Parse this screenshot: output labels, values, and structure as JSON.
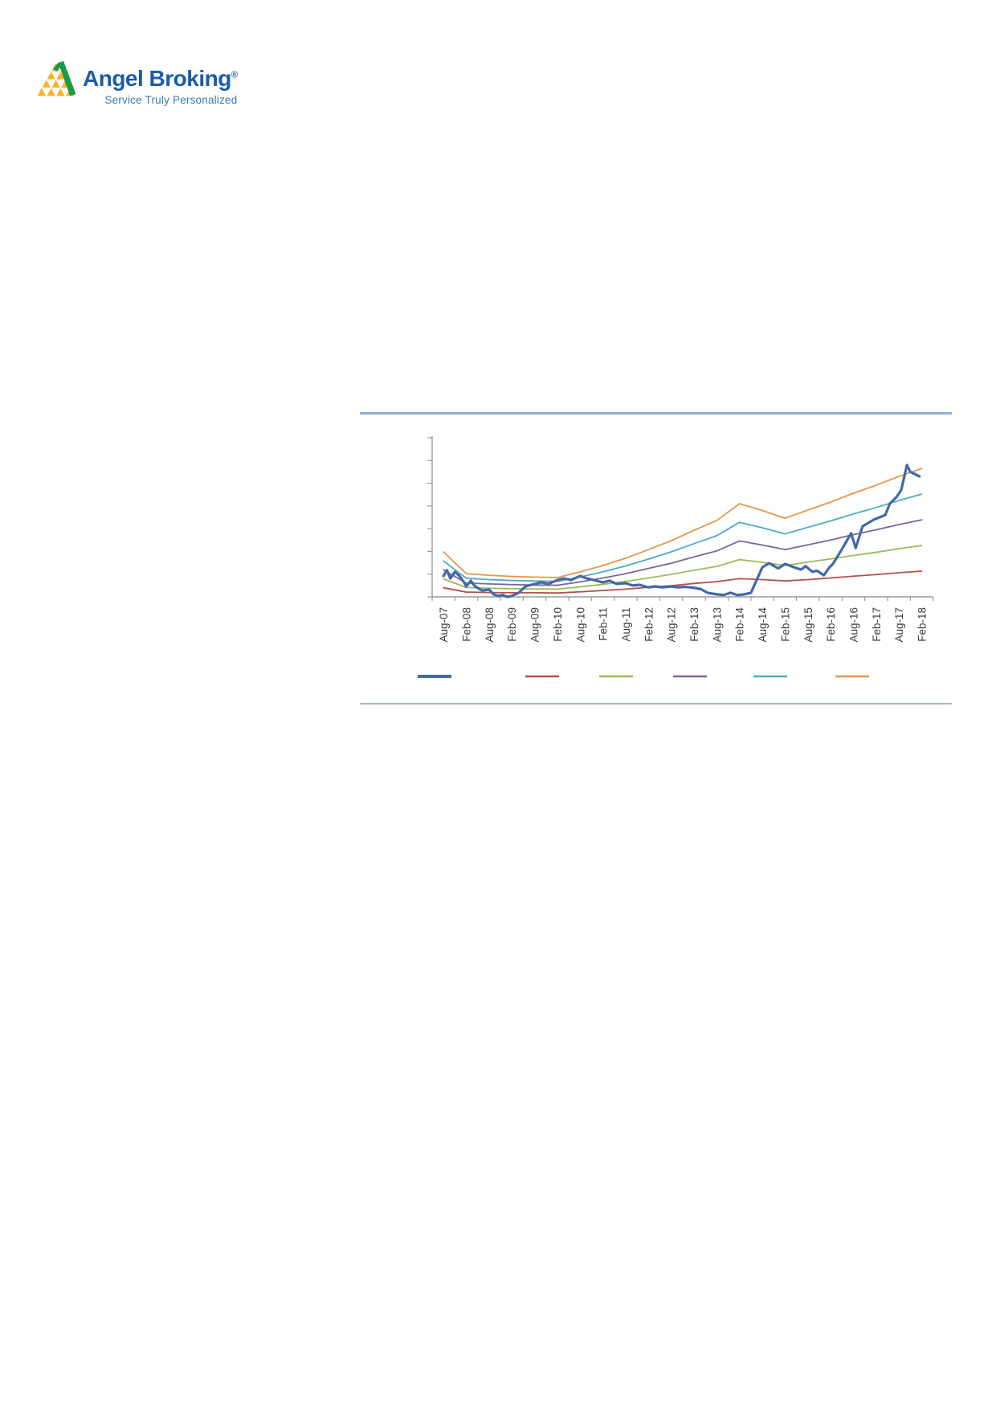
{
  "logo": {
    "brand": "Angel Broking",
    "registered_mark": "®",
    "tagline": "Service Truly Personalized",
    "brand_color": "#1b5ca8",
    "tagline_color": "#3b79ad",
    "mark_yellow": "#f9b320",
    "mark_green": "#189c4a"
  },
  "rules": {
    "top_color": "#93aec6",
    "bottom_color": "#a3b9cc"
  },
  "chart_data": {
    "type": "line",
    "title": "",
    "categories": [
      "Aug-07",
      "Feb-08",
      "Aug-08",
      "Feb-09",
      "Aug-09",
      "Feb-10",
      "Aug-10",
      "Feb-11",
      "Aug-11",
      "Feb-12",
      "Aug-12",
      "Feb-13",
      "Aug-13",
      "Feb-14",
      "Aug-14",
      "Feb-15",
      "Aug-15",
      "Feb-16",
      "Aug-16",
      "Feb-17",
      "Aug-17",
      "Feb-18"
    ],
    "x_tick_label_rotation_deg": 90,
    "y_axis": {
      "labels_visible": false,
      "tick_count": 8,
      "range_gridline_units": [
        0,
        7
      ],
      "gridlines_visible": false
    },
    "axis_color": "#9c9c9c",
    "tick_label_color": "#3d3d3d",
    "legend": {
      "position": "bottom",
      "text_visible": false,
      "marker_order": [
        "blue",
        "red",
        "green",
        "purple",
        "teal",
        "orange"
      ]
    },
    "series": [
      {
        "name": "price-line-blue",
        "color": "#4169a8",
        "width": 3.2,
        "points": [
          [
            0,
            0.92
          ],
          [
            0.15,
            1.17
          ],
          [
            0.3,
            0.81
          ],
          [
            0.5,
            1.1
          ],
          [
            0.7,
            0.92
          ],
          [
            0.9,
            0.64
          ],
          [
            1.0,
            0.46
          ],
          [
            1.2,
            0.71
          ],
          [
            1.35,
            0.5
          ],
          [
            1.5,
            0.39
          ],
          [
            1.7,
            0.28
          ],
          [
            2.0,
            0.32
          ],
          [
            2.2,
            0.11
          ],
          [
            2.4,
            0.04
          ],
          [
            2.6,
            0.08
          ],
          [
            2.8,
            0.0
          ],
          [
            3.0,
            0.04
          ],
          [
            3.3,
            0.18
          ],
          [
            3.6,
            0.46
          ],
          [
            4.0,
            0.57
          ],
          [
            4.3,
            0.64
          ],
          [
            4.6,
            0.57
          ],
          [
            5.0,
            0.74
          ],
          [
            5.3,
            0.81
          ],
          [
            5.6,
            0.74
          ],
          [
            6.0,
            0.92
          ],
          [
            6.3,
            0.81
          ],
          [
            6.6,
            0.74
          ],
          [
            7.0,
            0.64
          ],
          [
            7.3,
            0.71
          ],
          [
            7.6,
            0.57
          ],
          [
            8.0,
            0.6
          ],
          [
            8.3,
            0.5
          ],
          [
            8.6,
            0.53
          ],
          [
            9.0,
            0.42
          ],
          [
            9.3,
            0.46
          ],
          [
            9.6,
            0.42
          ],
          [
            10.0,
            0.46
          ],
          [
            10.3,
            0.42
          ],
          [
            10.6,
            0.44
          ],
          [
            11.0,
            0.4
          ],
          [
            11.3,
            0.34
          ],
          [
            11.6,
            0.18
          ],
          [
            12.0,
            0.11
          ],
          [
            12.3,
            0.08
          ],
          [
            12.6,
            0.18
          ],
          [
            12.9,
            0.08
          ],
          [
            13.2,
            0.11
          ],
          [
            13.5,
            0.18
          ],
          [
            13.8,
            0.85
          ],
          [
            14.0,
            1.3
          ],
          [
            14.3,
            1.48
          ],
          [
            14.7,
            1.25
          ],
          [
            15.0,
            1.45
          ],
          [
            15.4,
            1.3
          ],
          [
            15.7,
            1.2
          ],
          [
            15.9,
            1.35
          ],
          [
            16.2,
            1.1
          ],
          [
            16.4,
            1.15
          ],
          [
            16.7,
            0.95
          ],
          [
            16.95,
            1.3
          ],
          [
            17.1,
            1.45
          ],
          [
            17.5,
            2.1
          ],
          [
            17.9,
            2.8
          ],
          [
            18.1,
            2.15
          ],
          [
            18.4,
            3.1
          ],
          [
            18.9,
            3.4
          ],
          [
            19.4,
            3.6
          ],
          [
            19.6,
            4.1
          ],
          [
            19.9,
            4.4
          ],
          [
            20.1,
            4.7
          ],
          [
            20.35,
            5.8
          ],
          [
            20.5,
            5.5
          ],
          [
            20.7,
            5.4
          ],
          [
            20.9,
            5.3
          ]
        ]
      },
      {
        "name": "band-line-red",
        "color": "#b5504a",
        "width": 1.8,
        "values": [
          0.4,
          0.21,
          0.19,
          0.18,
          0.18,
          0.17,
          0.22,
          0.28,
          0.34,
          0.42,
          0.49,
          0.59,
          0.67,
          0.8,
          0.76,
          0.7,
          0.76,
          0.83,
          0.91,
          0.98,
          1.06,
          1.13
        ]
      },
      {
        "name": "band-line-green",
        "color": "#9bbb59",
        "width": 1.8,
        "values": [
          0.79,
          0.41,
          0.38,
          0.36,
          0.35,
          0.34,
          0.44,
          0.55,
          0.68,
          0.83,
          0.99,
          1.17,
          1.34,
          1.64,
          1.52,
          1.38,
          1.53,
          1.67,
          1.82,
          1.96,
          2.12,
          2.26
        ]
      },
      {
        "name": "band-line-purple",
        "color": "#7d64a0",
        "width": 1.8,
        "values": [
          1.19,
          0.61,
          0.57,
          0.54,
          0.52,
          0.51,
          0.66,
          0.83,
          1.02,
          1.25,
          1.48,
          1.76,
          2.02,
          2.46,
          2.28,
          2.08,
          2.29,
          2.5,
          2.74,
          2.95,
          3.18,
          3.39
        ]
      },
      {
        "name": "band-line-teal",
        "color": "#4bacc6",
        "width": 1.8,
        "values": [
          1.58,
          0.82,
          0.76,
          0.72,
          0.7,
          0.68,
          0.88,
          1.1,
          1.36,
          1.66,
          1.98,
          2.34,
          2.69,
          3.28,
          3.04,
          2.77,
          3.06,
          3.34,
          3.65,
          3.93,
          4.24,
          4.52
        ]
      },
      {
        "name": "band-line-orange",
        "color": "#e8954b",
        "width": 1.8,
        "values": [
          1.98,
          1.02,
          0.95,
          0.9,
          0.87,
          0.85,
          1.1,
          1.38,
          1.7,
          2.08,
          2.47,
          2.93,
          3.36,
          4.1,
          3.8,
          3.46,
          3.82,
          4.17,
          4.56,
          4.91,
          5.3,
          5.65
        ]
      }
    ]
  }
}
